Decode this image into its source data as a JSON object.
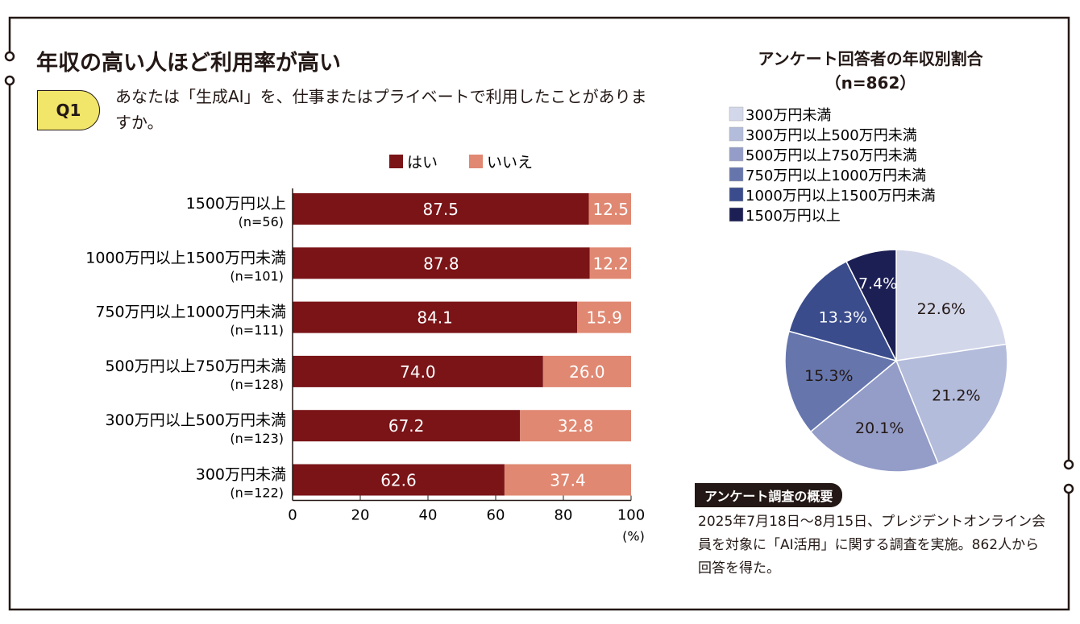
{
  "title": "年収の高い人ほど利用率が高い",
  "question": {
    "badge": "Q1",
    "text": "あなたは「生成AI」を、仕事またはプライベートで利用したことがありますか。"
  },
  "chart_data": [
    {
      "type": "bar",
      "stacked": true,
      "orientation": "horizontal",
      "categories": [
        "1500万円以上",
        "1000万円以上1500万円未満",
        "750万円以上1000万円未満",
        "500万円以上750万円未満",
        "300万円以上500万円未満",
        "300万円未満"
      ],
      "category_n": [
        "(n=56)",
        "(n=101)",
        "(n=111)",
        "(n=128)",
        "(n=123)",
        "(n=122)"
      ],
      "series": [
        {
          "name": "はい",
          "color": "#7a1417",
          "values": [
            87.5,
            87.8,
            84.1,
            74.0,
            67.2,
            62.6
          ]
        },
        {
          "name": "いいえ",
          "color": "#e08872",
          "values": [
            12.5,
            12.2,
            15.9,
            26.0,
            32.8,
            37.4
          ]
        }
      ],
      "xlim": [
        0,
        100
      ],
      "xticks": [
        0,
        20,
        40,
        60,
        80,
        100
      ],
      "xunit": "(%)",
      "legend": "top"
    },
    {
      "type": "pie",
      "title": "アンケート回答者の年収別割合",
      "subtitle": "（n=862）",
      "labels": [
        "300万円未満",
        "300万円以上500万円未満",
        "500万円以上750万円未満",
        "750万円以上1000万円未満",
        "1000万円以上1500万円未満",
        "1500万円以上"
      ],
      "values": [
        22.6,
        21.2,
        20.1,
        15.3,
        13.3,
        7.4
      ],
      "value_labels": [
        "22.6%",
        "21.2%",
        "20.1%",
        "15.3%",
        "13.3%",
        "7.4%"
      ],
      "colors": [
        "#d3d7ea",
        "#b3bcdb",
        "#949dc8",
        "#6676ad",
        "#3a4c8c",
        "#1c1f54"
      ],
      "legend": "top"
    }
  ],
  "note": {
    "title": "アンケート調査の概要",
    "text": "2025年7月18日～8月15日、プレジデントオンライン会員を対象に「AI活用」に関する調査を実施。862人から回答を得た。"
  }
}
